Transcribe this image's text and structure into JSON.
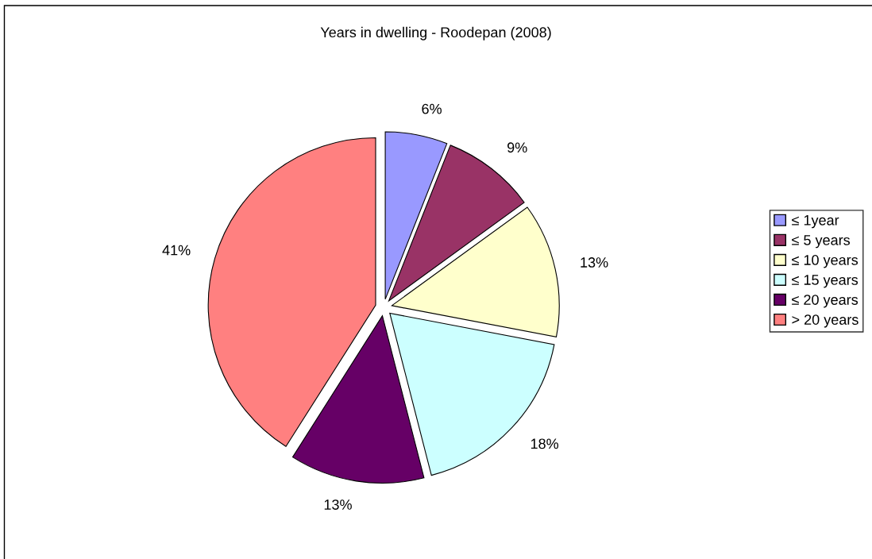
{
  "chart_data": {
    "type": "pie",
    "title": "Years in dwelling - Roodepan (2008)",
    "categories": [
      "≤ 1year",
      "≤ 5 years",
      "≤ 10 years",
      "≤ 15 years",
      "≤ 20 years",
      "> 20 years"
    ],
    "values": [
      6,
      9,
      13,
      18,
      13,
      41
    ],
    "colors": [
      "#9999ff",
      "#993366",
      "#ffffcc",
      "#ccffff",
      "#660066",
      "#ff8080"
    ],
    "value_labels": [
      "6%",
      "9%",
      "13%",
      "18%",
      "13%",
      "41%"
    ],
    "legend": "right"
  }
}
